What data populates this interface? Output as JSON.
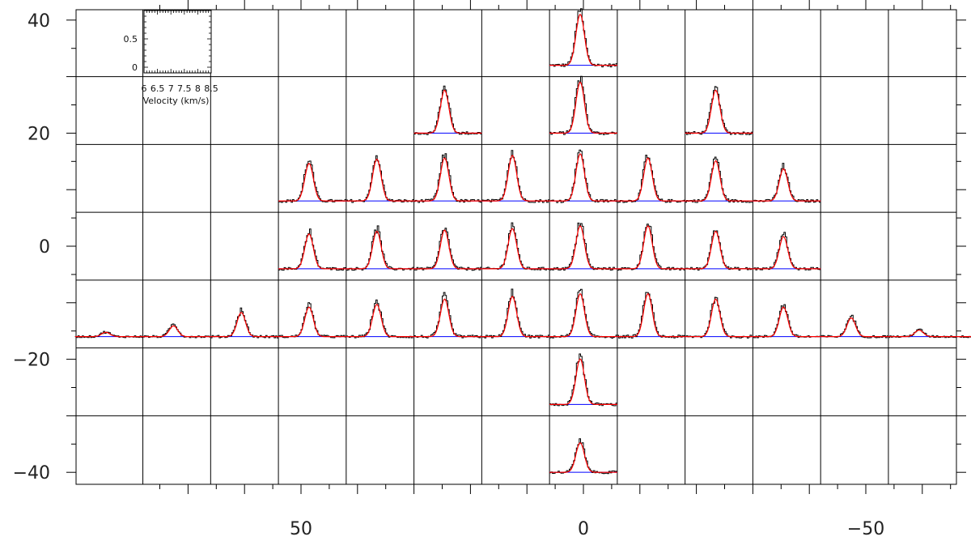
{
  "chart_data": {
    "type": "line",
    "description_units": "Map offsets; each cell holds a spectrum (observed = black histogram, fit = red, baseline = blue)",
    "x_axis": {
      "ticks": [
        50,
        0,
        -50
      ],
      "tick_labels": [
        "50",
        "0",
        "−50"
      ],
      "range": [
        77.8,
        -77.8
      ],
      "cell_spacing": 12
    },
    "y_axis": {
      "ticks": [
        40,
        20,
        0,
        -20,
        -40
      ],
      "tick_labels": [
        "40",
        "20",
        "0",
        "−20",
        "−40"
      ],
      "range": [
        -42,
        42
      ],
      "cell_spacing": 12
    },
    "inset": {
      "xlabel": "Velocity (km/s)",
      "x_tick_labels": [
        "6",
        "6.5",
        "7",
        "7.5",
        "8",
        "8.5"
      ],
      "y_tick_labels": [
        "0.5",
        "0"
      ],
      "x_range": [
        6,
        8.5
      ],
      "y_range": [
        -0.1,
        1.0
      ]
    },
    "series_legend": [
      {
        "role": "observed",
        "color": "#000000"
      },
      {
        "role": "gaussian-fit",
        "color": "#ff0000"
      },
      {
        "role": "baseline",
        "color": "#0000ff"
      }
    ],
    "rows": [
      {
        "y": 36,
        "spectra": [
          {
            "x": 0,
            "peak": 0.95
          }
        ]
      },
      {
        "y": 24,
        "spectra": [
          {
            "x": 24,
            "peak": 0.8
          },
          {
            "x": 0,
            "peak": 0.95
          },
          {
            "x": -24,
            "peak": 0.8
          }
        ]
      },
      {
        "y": 12,
        "spectra": [
          {
            "x": 48,
            "peak": 0.7
          },
          {
            "x": 36,
            "peak": 0.78
          },
          {
            "x": 24,
            "peak": 0.8
          },
          {
            "x": 12,
            "peak": 0.85
          },
          {
            "x": 0,
            "peak": 0.88
          },
          {
            "x": -12,
            "peak": 0.8
          },
          {
            "x": -24,
            "peak": 0.75
          },
          {
            "x": -36,
            "peak": 0.6
          }
        ]
      },
      {
        "y": 0,
        "spectra": [
          {
            "x": 48,
            "peak": 0.65
          },
          {
            "x": 36,
            "peak": 0.7
          },
          {
            "x": 24,
            "peak": 0.72
          },
          {
            "x": 12,
            "peak": 0.75
          },
          {
            "x": 0,
            "peak": 0.8
          },
          {
            "x": -12,
            "peak": 0.8
          },
          {
            "x": -24,
            "peak": 0.7
          },
          {
            "x": -36,
            "peak": 0.6
          }
        ]
      },
      {
        "y": -12,
        "spectra": [
          {
            "x": 84,
            "peak": 0.08
          },
          {
            "x": 72,
            "peak": 0.2
          },
          {
            "x": 60,
            "peak": 0.45
          },
          {
            "x": 48,
            "peak": 0.55
          },
          {
            "x": 36,
            "peak": 0.6
          },
          {
            "x": 24,
            "peak": 0.7
          },
          {
            "x": 12,
            "peak": 0.75
          },
          {
            "x": 0,
            "peak": 0.8
          },
          {
            "x": -12,
            "peak": 0.8
          },
          {
            "x": -24,
            "peak": 0.7
          },
          {
            "x": -36,
            "peak": 0.55
          },
          {
            "x": -48,
            "peak": 0.35
          },
          {
            "x": -60,
            "peak": 0.12
          },
          {
            "x": -72,
            "peak": 0.0
          }
        ]
      },
      {
        "y": -24,
        "spectra": [
          {
            "x": 0,
            "peak": 0.85
          }
        ]
      },
      {
        "y": -36,
        "spectra": [
          {
            "x": 0,
            "peak": 0.55
          }
        ]
      }
    ]
  }
}
